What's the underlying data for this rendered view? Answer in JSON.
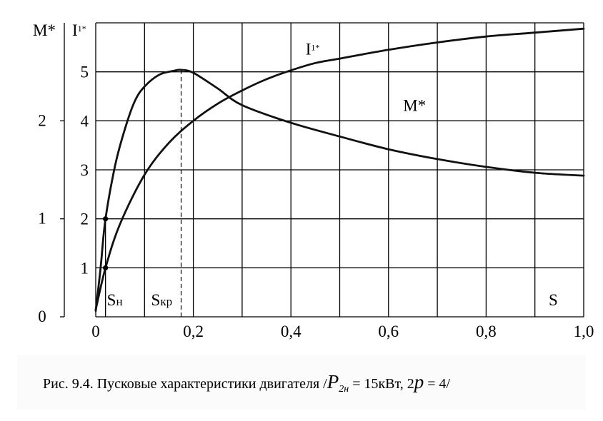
{
  "chart_data": {
    "type": "line",
    "x_ticks": [
      "0",
      "0,2",
      "0,4",
      "0,6",
      "0,8",
      "1,0"
    ],
    "xlim": [
      0,
      1.0
    ],
    "x_axis_label": "S",
    "i_axis": {
      "label": "I",
      "label_sub": "1*",
      "ticks": [
        "1",
        "2",
        "3",
        "4",
        "5"
      ],
      "ylim": [
        0,
        6
      ]
    },
    "m_axis": {
      "label": "M*",
      "ticks": [
        "0",
        "1",
        "2"
      ],
      "values": [
        0,
        1,
        2
      ],
      "ylim": [
        0,
        3
      ]
    },
    "grid": true,
    "markers": [
      {
        "label": "S",
        "label_sub": "н",
        "x": 0.02
      },
      {
        "label": "S",
        "label_sub": "кр",
        "x": 0.175
      }
    ],
    "series": [
      {
        "name": "I1*",
        "label": "I",
        "label_sub": "1*",
        "axis": "I",
        "x": [
          0,
          0.02,
          0.05,
          0.1,
          0.15,
          0.2,
          0.25,
          0.3,
          0.35,
          0.4,
          0.45,
          0.5,
          0.6,
          0.7,
          0.8,
          0.9,
          1.0
        ],
        "y": [
          0.15,
          1.0,
          1.9,
          2.9,
          3.55,
          4.0,
          4.35,
          4.62,
          4.85,
          5.03,
          5.18,
          5.27,
          5.45,
          5.6,
          5.72,
          5.8,
          5.88
        ]
      },
      {
        "name": "M*",
        "label": "M*",
        "axis": "M",
        "x": [
          0,
          0.01,
          0.02,
          0.04,
          0.06,
          0.08,
          0.1,
          0.13,
          0.16,
          0.175,
          0.2,
          0.25,
          0.3,
          0.4,
          0.5,
          0.6,
          0.7,
          0.8,
          0.9,
          1.0
        ],
        "y": [
          0.06,
          0.5,
          1.0,
          1.55,
          1.92,
          2.2,
          2.35,
          2.47,
          2.51,
          2.52,
          2.49,
          2.33,
          2.16,
          1.98,
          1.84,
          1.71,
          1.61,
          1.53,
          1.47,
          1.44
        ]
      }
    ],
    "points": [
      {
        "x": 0.02,
        "axis": "I",
        "y": 1.0
      },
      {
        "x": 0.02,
        "axis": "M",
        "y": 1.0
      }
    ]
  },
  "caption": {
    "prefix": "Рис. 9.4. Пусковые характеристики двигателя /",
    "p_symbol": "P",
    "p_sub": "2н",
    "power": " = 15кВт, 2",
    "poles_symbol": "p",
    "poles": " = 4/"
  }
}
